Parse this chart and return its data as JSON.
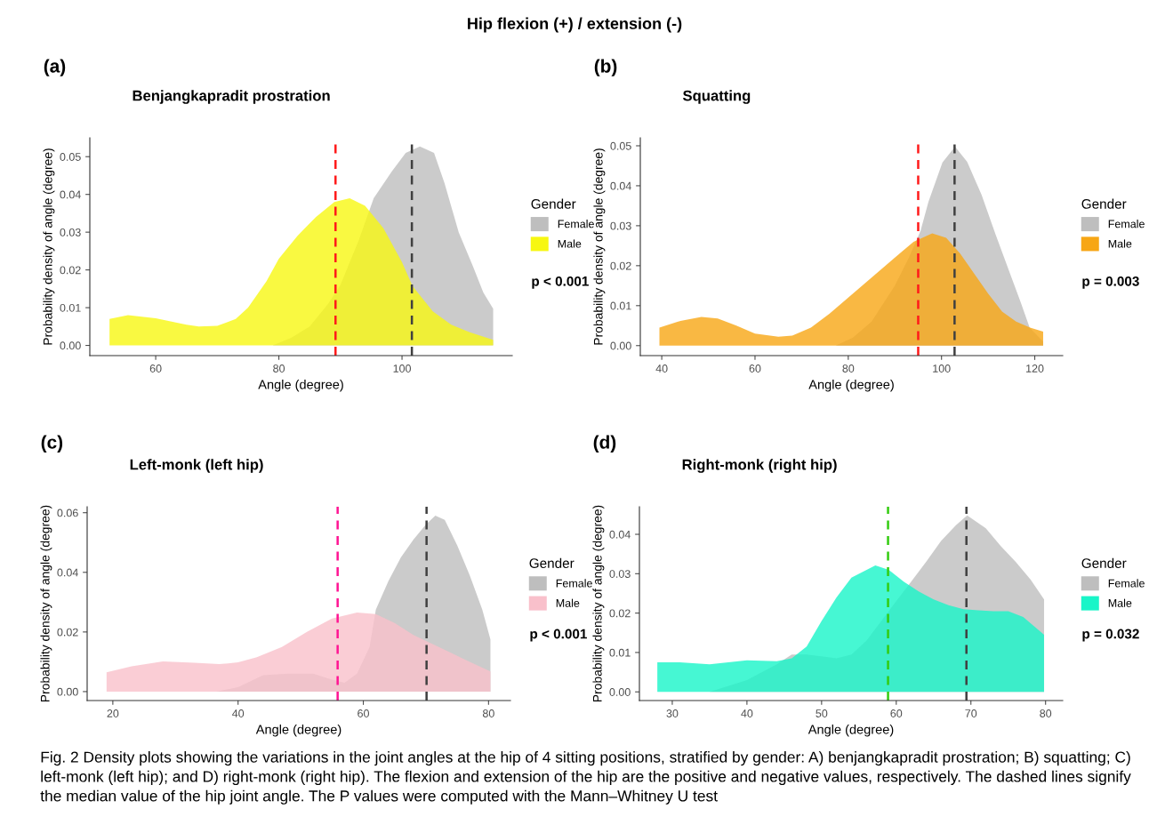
{
  "chart_data": [
    {
      "type": "area",
      "title": "Benjangkapradit prostration",
      "xlabel": "Angle (degree)",
      "ylabel": "Probability density of angle (degree)",
      "legend_title": "Gender",
      "legend": "right",
      "grid": false,
      "annotations": [
        "(a)",
        "p < 0.001",
        "Hip flexion (+) / extension (-)"
      ],
      "xlim": [
        49.3,
        117.9
      ],
      "ylim": [
        -0.0027,
        0.055
      ],
      "xticks": [
        60,
        80,
        100
      ],
      "yticks": [
        {
          "value": 0,
          "label": "0.00"
        },
        {
          "value": 0.01,
          "label": "0.01"
        },
        {
          "value": 0.02,
          "label": "0.02"
        },
        {
          "value": 0.03,
          "label": "0.03"
        },
        {
          "value": 0.04,
          "label": "0.04"
        },
        {
          "value": 0.05,
          "label": "0.05"
        }
      ],
      "series": [
        {
          "name": "Female",
          "color": "#bebebe",
          "x": [
            52.5,
            79,
            82,
            85,
            88,
            90,
            93,
            95.4,
            98.3,
            100.6,
            102.9,
            105.2,
            106.9,
            109.2,
            111.5,
            113.2,
            114.8
          ],
          "values": [
            0,
            0,
            0.002,
            0.005,
            0.011,
            0.016,
            0.028,
            0.039,
            0.046,
            0.051,
            0.0527,
            0.051,
            0.043,
            0.03,
            0.021,
            0.014,
            0.0097
          ]
        },
        {
          "name": "Male",
          "color": "#f7f711",
          "x": [
            52.5,
            55.5,
            60,
            65,
            67,
            70,
            73,
            75,
            78,
            80,
            83,
            86,
            89,
            91.5,
            94,
            97,
            100,
            101.7,
            105,
            108,
            111,
            114.8
          ],
          "values": [
            0.007,
            0.008,
            0.0072,
            0.0055,
            0.005,
            0.0052,
            0.007,
            0.01,
            0.017,
            0.023,
            0.029,
            0.034,
            0.038,
            0.039,
            0.037,
            0.031,
            0.022,
            0.0157,
            0.009,
            0.0055,
            0.0035,
            0.0015
          ]
        }
      ],
      "ref_lines": [
        {
          "axis": "x",
          "value": 89.2,
          "color": "#ff1a1a",
          "line_style": "dashed"
        },
        {
          "axis": "x",
          "value": 101.6,
          "color": "#404040",
          "line_style": "dashed"
        }
      ]
    },
    {
      "type": "area",
      "title": "Squatting",
      "xlabel": "Angle (degree)",
      "ylabel": "Probability density of angle (degree)",
      "legend_title": "Gender",
      "legend": "right",
      "grid": false,
      "annotations": [
        "(b)",
        "p = 0.003"
      ],
      "xlim": [
        35.4,
        126.0
      ],
      "ylim": [
        -0.0025,
        0.052
      ],
      "xticks": [
        40,
        60,
        80,
        100,
        120
      ],
      "yticks": [
        {
          "value": 0,
          "label": "0.00"
        },
        {
          "value": 0.01,
          "label": "0.01"
        },
        {
          "value": 0.02,
          "label": "0.02"
        },
        {
          "value": 0.03,
          "label": "0.03"
        },
        {
          "value": 0.04,
          "label": "0.04"
        },
        {
          "value": 0.05,
          "label": "0.05"
        }
      ],
      "series": [
        {
          "name": "Female",
          "color": "#bebebe",
          "x": [
            39.5,
            77.3,
            81,
            85,
            90,
            93,
            95.5,
            97.2,
            100.2,
            102.9,
            105.5,
            108.6,
            111.6,
            114.7,
            117,
            118.9,
            121.8
          ],
          "values": [
            0,
            0,
            0.002,
            0.006,
            0.015,
            0.022,
            0.0287,
            0.036,
            0.0458,
            0.0498,
            0.046,
            0.0377,
            0.0278,
            0.018,
            0.0108,
            0.0045,
            0.001
          ]
        },
        {
          "name": "Male",
          "color": "#f7a614",
          "x": [
            39.5,
            44,
            48.5,
            52,
            56,
            60,
            65,
            68,
            72,
            76,
            80,
            85,
            90,
            94,
            98,
            101,
            104,
            107,
            110,
            113,
            116,
            119,
            121.8
          ],
          "values": [
            0.0045,
            0.0062,
            0.0072,
            0.0068,
            0.005,
            0.003,
            0.0022,
            0.0025,
            0.0045,
            0.008,
            0.012,
            0.017,
            0.022,
            0.026,
            0.0281,
            0.027,
            0.023,
            0.018,
            0.013,
            0.0085,
            0.006,
            0.0045,
            0.0035
          ]
        }
      ],
      "ref_lines": [
        {
          "axis": "x",
          "value": 95.0,
          "color": "#ff1a1a",
          "line_style": "dashed"
        },
        {
          "axis": "x",
          "value": 102.8,
          "color": "#404040",
          "line_style": "dashed"
        }
      ]
    },
    {
      "type": "area",
      "title": "Left-monk (left hip)",
      "xlabel": "Angle (degree)",
      "ylabel": "Probability density of angle (degree)",
      "legend_title": "Gender",
      "legend": "right",
      "grid": false,
      "annotations": [
        "(c)",
        "p < 0.001"
      ],
      "xlim": [
        15.9,
        83.5
      ],
      "ylim": [
        -0.003,
        0.062
      ],
      "xticks": [
        20,
        40,
        60,
        80
      ],
      "yticks": [
        {
          "value": 0,
          "label": "0.00"
        },
        {
          "value": 0.02,
          "label": "0.02"
        },
        {
          "value": 0.04,
          "label": "0.04"
        },
        {
          "value": 0.06,
          "label": "0.06"
        }
      ],
      "series": [
        {
          "name": "Female",
          "color": "#bebebe",
          "x": [
            19,
            36.5,
            40,
            44,
            48,
            52,
            55,
            57,
            59,
            61,
            62,
            64,
            66,
            68,
            70,
            71.5,
            73,
            75,
            77,
            79,
            80.3
          ],
          "values": [
            0,
            0,
            0.0015,
            0.0055,
            0.006,
            0.006,
            0.004,
            0.003,
            0.006,
            0.015,
            0.0275,
            0.037,
            0.045,
            0.051,
            0.056,
            0.059,
            0.0576,
            0.049,
            0.039,
            0.0275,
            0.0175
          ]
        },
        {
          "name": "Male",
          "color": "#f9c0cb",
          "x": [
            19,
            23,
            28,
            33,
            37,
            40,
            43,
            47,
            51,
            55,
            59,
            62,
            65,
            68,
            71,
            74,
            77,
            80.3
          ],
          "values": [
            0.0065,
            0.0085,
            0.0101,
            0.0097,
            0.0092,
            0.0098,
            0.0115,
            0.015,
            0.02,
            0.0245,
            0.0265,
            0.026,
            0.023,
            0.019,
            0.016,
            0.013,
            0.01,
            0.0068
          ]
        }
      ],
      "ref_lines": [
        {
          "axis": "x",
          "value": 55.9,
          "color": "#ff1493",
          "line_style": "dashed"
        },
        {
          "axis": "x",
          "value": 70.1,
          "color": "#404040",
          "line_style": "dashed"
        }
      ]
    },
    {
      "type": "area",
      "title": "Right-monk (right hip)",
      "xlabel": "Angle (degree)",
      "ylabel": "Probability density of angle (degree)",
      "legend_title": "Gender",
      "legend": "right",
      "grid": false,
      "annotations": [
        "(d)",
        "p = 0.032",
        "Fig. 2 Density plots showing the variations in the joint angles at the hip of 4 sitting positions, stratified by gender: A) benjangkapradit prostration; B) squatting; C) left-monk (left hip); and D) right-monk (right hip). The flexion and extension of the hip are the positive and negative values, respectively. The dashed lines signify the median value of the hip joint angle. The P values were computed with the Mann–Whitney U test"
      ],
      "xlim": [
        25.6,
        82.3
      ],
      "ylim": [
        -0.0022,
        0.047
      ],
      "xticks": [
        30,
        40,
        50,
        60,
        70,
        80
      ],
      "yticks": [
        {
          "value": 0,
          "label": "0.00"
        },
        {
          "value": 0.01,
          "label": "0.01"
        },
        {
          "value": 0.02,
          "label": "0.02"
        },
        {
          "value": 0.03,
          "label": "0.03"
        },
        {
          "value": 0.04,
          "label": "0.04"
        }
      ],
      "series": [
        {
          "name": "Female",
          "color": "#bebebe",
          "x": [
            28,
            35,
            40,
            44,
            46,
            48,
            50,
            52,
            54,
            56,
            58,
            60,
            62,
            64,
            66,
            68,
            69.5,
            72,
            74,
            76,
            78,
            79.8
          ],
          "values": [
            0,
            0,
            0.003,
            0.007,
            0.0095,
            0.0095,
            0.009,
            0.0085,
            0.0095,
            0.013,
            0.018,
            0.023,
            0.028,
            0.033,
            0.0383,
            0.0423,
            0.0448,
            0.0415,
            0.037,
            0.033,
            0.0285,
            0.0235
          ]
        },
        {
          "name": "Male",
          "color": "#18f5c8",
          "x": [
            28,
            31,
            35,
            40,
            44,
            46,
            48,
            50,
            52,
            54,
            57.2,
            59,
            61,
            63,
            65,
            67,
            69,
            71,
            73,
            75,
            77,
            79.8
          ],
          "values": [
            0.0075,
            0.0075,
            0.007,
            0.008,
            0.0078,
            0.0085,
            0.0115,
            0.018,
            0.024,
            0.029,
            0.0321,
            0.031,
            0.028,
            0.0255,
            0.0235,
            0.022,
            0.021,
            0.0207,
            0.0205,
            0.0205,
            0.019,
            0.0145
          ]
        }
      ],
      "ref_lines": [
        {
          "axis": "x",
          "value": 58.9,
          "color": "#33cc11",
          "line_style": "dashed"
        },
        {
          "axis": "x",
          "value": 69.4,
          "color": "#404040",
          "line_style": "dashed"
        }
      ]
    }
  ]
}
